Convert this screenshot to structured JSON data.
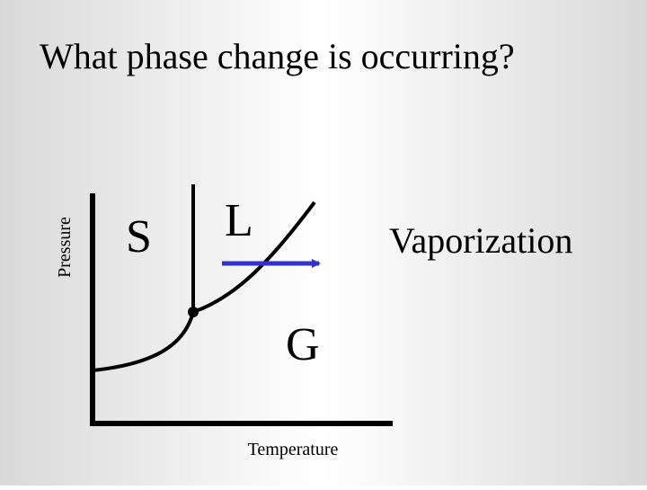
{
  "title": "What phase change is occurring?",
  "axes": {
    "y_label": "Pressure",
    "x_label": "Temperature"
  },
  "regions": {
    "solid": "S",
    "liquid": "L",
    "gas": "G"
  },
  "answer": "Vaporization"
}
